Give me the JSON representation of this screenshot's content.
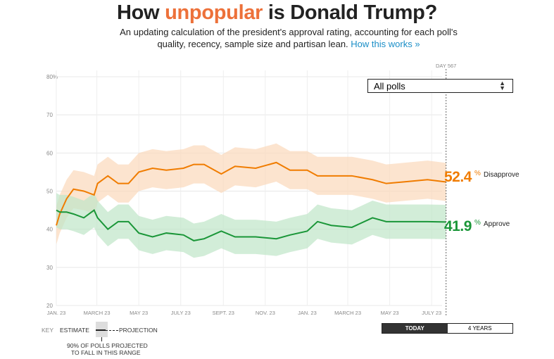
{
  "header": {
    "title_pre": "How ",
    "title_highlight": "unpopular",
    "title_post": " is Donald Trump?",
    "subtitle": "An updating calculation of the president's approval rating, accounting for each poll's quality, recency, sample size and partisan lean.",
    "link": "How this works »"
  },
  "filter": {
    "selected": "All polls"
  },
  "day_label": "DAY 567",
  "current": {
    "disapprove_value": "52.4",
    "disapprove_label": "Disapprove",
    "approve_value": "41.9",
    "approve_label": "Approve",
    "pct": "%"
  },
  "key": {
    "label": "KEY",
    "estimate": "ESTIMATE",
    "projection": "PROJECTION",
    "range_note_1": "90% OF POLLS PROJECTED",
    "range_note_2": "TO FALL IN THIS RANGE"
  },
  "range_buttons": [
    {
      "label": "TODAY",
      "active": true
    },
    {
      "label": "4 YEARS",
      "active": false
    }
  ],
  "colors": {
    "approve": "#1a9638",
    "disapprove": "#f07c00",
    "approve_band": "#bfe6c8",
    "disapprove_band": "#fbd9bb"
  },
  "chart_data": {
    "type": "line",
    "xlabel": "",
    "ylabel": "",
    "ylim": [
      20,
      80
    ],
    "xlim": [
      0,
      567
    ],
    "y_ticks": [
      "20",
      "30",
      "40",
      "50",
      "60",
      "70",
      "80%"
    ],
    "y_tick_values": [
      20,
      30,
      40,
      50,
      60,
      70,
      80
    ],
    "x_ticks": [
      {
        "day": 0,
        "label": "JAN. 23"
      },
      {
        "day": 59,
        "label": "MARCH 23"
      },
      {
        "day": 120,
        "label": "MAY 23"
      },
      {
        "day": 181,
        "label": "JULY 23"
      },
      {
        "day": 243,
        "label": "SEPT. 23"
      },
      {
        "day": 304,
        "label": "NOV. 23"
      },
      {
        "day": 365,
        "label": "JAN. 23"
      },
      {
        "day": 424,
        "label": "MARCH 23"
      },
      {
        "day": 485,
        "label": "MAY 23"
      },
      {
        "day": 546,
        "label": "JULY 23"
      }
    ],
    "grid": true,
    "x": [
      0,
      5,
      15,
      25,
      40,
      55,
      60,
      75,
      90,
      105,
      120,
      140,
      160,
      185,
      200,
      215,
      240,
      260,
      290,
      320,
      340,
      365,
      380,
      400,
      430,
      460,
      480,
      510,
      540,
      567
    ],
    "series": [
      {
        "name": "Disapprove",
        "values": [
          41,
          44,
          48,
          50.5,
          50,
          49,
          52,
          54,
          52,
          52,
          55,
          56,
          55.5,
          56,
          57,
          57,
          54.5,
          56.5,
          56,
          57.5,
          55.5,
          55.5,
          54,
          54,
          54,
          53,
          52,
          52.5,
          53,
          52.4
        ],
        "band": 5
      },
      {
        "name": "Approve",
        "values": [
          45,
          44.5,
          44.5,
          44,
          43,
          45,
          43,
          40,
          42,
          42,
          39,
          38,
          39,
          38.5,
          37,
          37.5,
          39.5,
          38,
          38,
          37.5,
          38.5,
          39.5,
          42,
          41,
          40.5,
          43,
          42,
          42,
          42,
          41.9
        ],
        "band": 4.5
      }
    ]
  }
}
